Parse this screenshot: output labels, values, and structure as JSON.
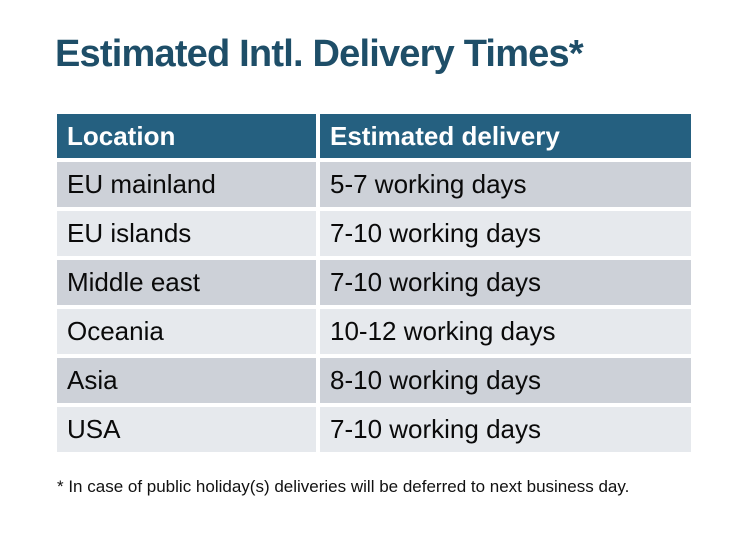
{
  "title": "Estimated Intl. Delivery Times*",
  "table": {
    "columns": {
      "location": "Location",
      "delivery": "Estimated delivery"
    },
    "rows": [
      {
        "location": "EU mainland",
        "delivery": "5-7 working days"
      },
      {
        "location": "EU islands",
        "delivery": "7-10 working days"
      },
      {
        "location": "Middle east",
        "delivery": "7-10 working days"
      },
      {
        "location": "Oceania",
        "delivery": "10-12 working days"
      },
      {
        "location": "Asia",
        "delivery": "8-10 working days"
      },
      {
        "location": "USA",
        "delivery": "7-10 working days"
      }
    ]
  },
  "footnote": "* In case of public holiday(s) deliveries will be deferred to next business day.",
  "colors": {
    "title_text": "#1E4E68",
    "header_background": "#256080",
    "header_text": "#FFFFFF",
    "row_dark": "#CDD1D8",
    "row_light": "#E6E9ED",
    "body_text": "#0A0A0A",
    "page_background": "#FFFFFF"
  }
}
